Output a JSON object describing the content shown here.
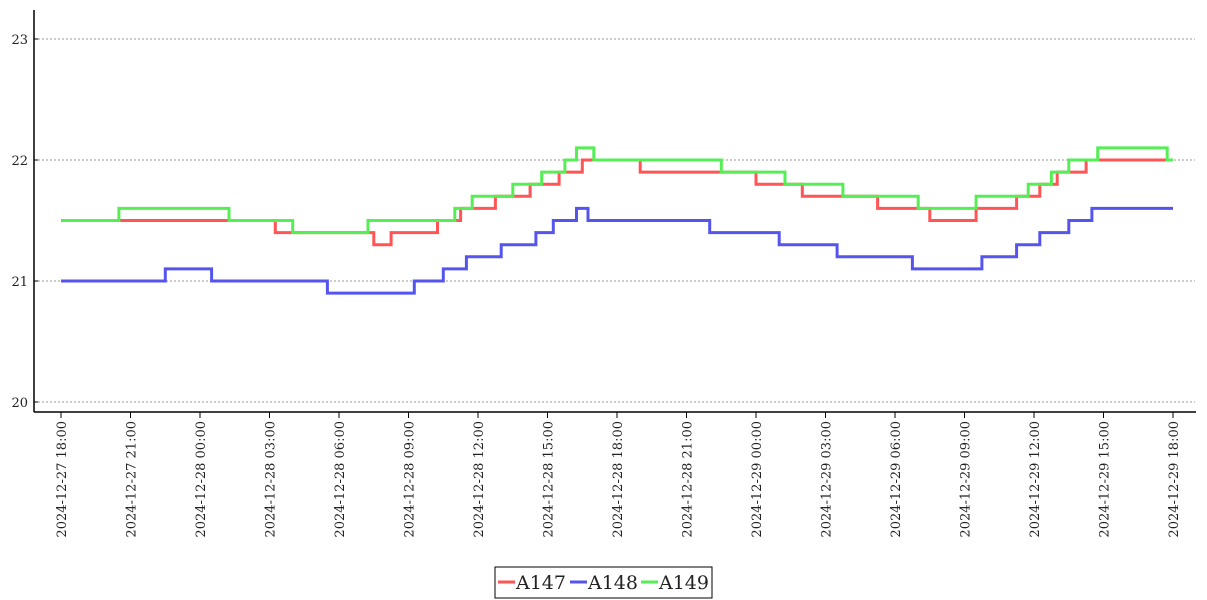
{
  "chart_data": {
    "type": "line",
    "title": "",
    "xlabel": "",
    "ylabel": "",
    "ylim": [
      19.92,
      23.2
    ],
    "y_ticks": [
      "20",
      "21",
      "22",
      "23"
    ],
    "y_tick_values": [
      20,
      21,
      22,
      23
    ],
    "grid": "horizontal dotted",
    "legend_placement": "bottom-center",
    "x_ticks": [
      "2024-12-27 18:00",
      "2024-12-27 21:00",
      "2024-12-28 00:00",
      "2024-12-28 03:00",
      "2024-12-28 06:00",
      "2024-12-28 09:00",
      "2024-12-28 12:00",
      "2024-12-28 15:00",
      "2024-12-28 18:00",
      "2024-12-28 21:00",
      "2024-12-29 00:00",
      "2024-12-29 03:00",
      "2024-12-29 06:00",
      "2024-12-29 09:00",
      "2024-12-29 12:00",
      "2024-12-29 15:00",
      "2024-12-29 18:00"
    ],
    "series": [
      {
        "name": "A147",
        "color": "#ff5555",
        "points": [
          [
            "2024-12-27 18:00",
            21.5
          ],
          [
            "2024-12-28 03:15",
            21.5
          ],
          [
            "2024-12-28 03:15",
            21.4
          ],
          [
            "2024-12-28 04:30",
            21.4
          ],
          [
            "2024-12-28 07:30",
            21.4
          ],
          [
            "2024-12-28 07:30",
            21.3
          ],
          [
            "2024-12-28 08:15",
            21.3
          ],
          [
            "2024-12-28 08:15",
            21.4
          ],
          [
            "2024-12-28 10:15",
            21.4
          ],
          [
            "2024-12-28 10:15",
            21.5
          ],
          [
            "2024-12-28 11:15",
            21.5
          ],
          [
            "2024-12-28 11:15",
            21.6
          ],
          [
            "2024-12-28 12:45",
            21.6
          ],
          [
            "2024-12-28 12:45",
            21.7
          ],
          [
            "2024-12-28 14:15",
            21.7
          ],
          [
            "2024-12-28 14:15",
            21.8
          ],
          [
            "2024-12-28 15:30",
            21.8
          ],
          [
            "2024-12-28 15:30",
            21.9
          ],
          [
            "2024-12-28 16:30",
            21.9
          ],
          [
            "2024-12-28 16:30",
            22.0
          ],
          [
            "2024-12-28 19:00",
            22.0
          ],
          [
            "2024-12-28 19:00",
            21.9
          ],
          [
            "2024-12-29 00:00",
            21.9
          ],
          [
            "2024-12-29 00:00",
            21.8
          ],
          [
            "2024-12-29 02:00",
            21.8
          ],
          [
            "2024-12-29 02:00",
            21.7
          ],
          [
            "2024-12-29 05:15",
            21.7
          ],
          [
            "2024-12-29 05:15",
            21.6
          ],
          [
            "2024-12-29 07:30",
            21.6
          ],
          [
            "2024-12-29 07:30",
            21.5
          ],
          [
            "2024-12-29 09:30",
            21.5
          ],
          [
            "2024-12-29 09:30",
            21.6
          ],
          [
            "2024-12-29 11:15",
            21.6
          ],
          [
            "2024-12-29 11:15",
            21.7
          ],
          [
            "2024-12-29 12:15",
            21.7
          ],
          [
            "2024-12-29 12:15",
            21.8
          ],
          [
            "2024-12-29 13:00",
            21.8
          ],
          [
            "2024-12-29 13:00",
            21.9
          ],
          [
            "2024-12-29 14:15",
            21.9
          ],
          [
            "2024-12-29 14:15",
            22.0
          ],
          [
            "2024-12-29 18:00",
            22.0
          ]
        ]
      },
      {
        "name": "A148",
        "color": "#5555ee",
        "points": [
          [
            "2024-12-27 18:00",
            21.0
          ],
          [
            "2024-12-27 22:30",
            21.0
          ],
          [
            "2024-12-27 22:30",
            21.1
          ],
          [
            "2024-12-28 00:30",
            21.1
          ],
          [
            "2024-12-28 00:30",
            21.0
          ],
          [
            "2024-12-28 05:30",
            21.0
          ],
          [
            "2024-12-28 05:30",
            20.9
          ],
          [
            "2024-12-28 09:15",
            20.9
          ],
          [
            "2024-12-28 09:15",
            21.0
          ],
          [
            "2024-12-28 10:30",
            21.0
          ],
          [
            "2024-12-28 10:30",
            21.1
          ],
          [
            "2024-12-28 11:30",
            21.1
          ],
          [
            "2024-12-28 11:30",
            21.2
          ],
          [
            "2024-12-28 13:00",
            21.2
          ],
          [
            "2024-12-28 13:00",
            21.3
          ],
          [
            "2024-12-28 14:30",
            21.3
          ],
          [
            "2024-12-28 14:30",
            21.4
          ],
          [
            "2024-12-28 15:15",
            21.4
          ],
          [
            "2024-12-28 15:15",
            21.5
          ],
          [
            "2024-12-28 16:15",
            21.5
          ],
          [
            "2024-12-28 16:15",
            21.6
          ],
          [
            "2024-12-28 16:45",
            21.6
          ],
          [
            "2024-12-28 16:45",
            21.5
          ],
          [
            "2024-12-28 22:00",
            21.5
          ],
          [
            "2024-12-28 22:00",
            21.4
          ],
          [
            "2024-12-29 01:00",
            21.4
          ],
          [
            "2024-12-29 01:00",
            21.3
          ],
          [
            "2024-12-29 03:30",
            21.3
          ],
          [
            "2024-12-29 03:30",
            21.2
          ],
          [
            "2024-12-29 06:45",
            21.2
          ],
          [
            "2024-12-29 06:45",
            21.1
          ],
          [
            "2024-12-29 09:45",
            21.1
          ],
          [
            "2024-12-29 09:45",
            21.2
          ],
          [
            "2024-12-29 11:15",
            21.2
          ],
          [
            "2024-12-29 11:15",
            21.3
          ],
          [
            "2024-12-29 12:15",
            21.3
          ],
          [
            "2024-12-29 12:15",
            21.4
          ],
          [
            "2024-12-29 13:30",
            21.4
          ],
          [
            "2024-12-29 13:30",
            21.5
          ],
          [
            "2024-12-29 14:30",
            21.5
          ],
          [
            "2024-12-29 14:30",
            21.6
          ],
          [
            "2024-12-29 18:00",
            21.6
          ]
        ]
      },
      {
        "name": "A149",
        "color": "#55ee55",
        "points": [
          [
            "2024-12-27 18:00",
            21.5
          ],
          [
            "2024-12-27 20:30",
            21.5
          ],
          [
            "2024-12-27 20:30",
            21.6
          ],
          [
            "2024-12-28 01:15",
            21.6
          ],
          [
            "2024-12-28 01:15",
            21.5
          ],
          [
            "2024-12-28 04:00",
            21.5
          ],
          [
            "2024-12-28 04:00",
            21.4
          ],
          [
            "2024-12-28 07:15",
            21.4
          ],
          [
            "2024-12-28 07:15",
            21.5
          ],
          [
            "2024-12-28 11:00",
            21.5
          ],
          [
            "2024-12-28 11:00",
            21.6
          ],
          [
            "2024-12-28 11:45",
            21.6
          ],
          [
            "2024-12-28 11:45",
            21.7
          ],
          [
            "2024-12-28 13:30",
            21.7
          ],
          [
            "2024-12-28 13:30",
            21.8
          ],
          [
            "2024-12-28 14:45",
            21.8
          ],
          [
            "2024-12-28 14:45",
            21.9
          ],
          [
            "2024-12-28 15:45",
            21.9
          ],
          [
            "2024-12-28 15:45",
            22.0
          ],
          [
            "2024-12-28 16:15",
            22.0
          ],
          [
            "2024-12-28 16:15",
            22.1
          ],
          [
            "2024-12-28 17:00",
            22.1
          ],
          [
            "2024-12-28 17:00",
            22.0
          ],
          [
            "2024-12-28 22:30",
            22.0
          ],
          [
            "2024-12-28 22:30",
            21.9
          ],
          [
            "2024-12-29 01:15",
            21.9
          ],
          [
            "2024-12-29 01:15",
            21.8
          ],
          [
            "2024-12-29 03:45",
            21.8
          ],
          [
            "2024-12-29 03:45",
            21.7
          ],
          [
            "2024-12-29 07:00",
            21.7
          ],
          [
            "2024-12-29 07:00",
            21.6
          ],
          [
            "2024-12-29 09:30",
            21.6
          ],
          [
            "2024-12-29 09:30",
            21.7
          ],
          [
            "2024-12-29 11:45",
            21.7
          ],
          [
            "2024-12-29 11:45",
            21.8
          ],
          [
            "2024-12-29 12:45",
            21.8
          ],
          [
            "2024-12-29 12:45",
            21.9
          ],
          [
            "2024-12-29 13:30",
            21.9
          ],
          [
            "2024-12-29 13:30",
            22.0
          ],
          [
            "2024-12-29 14:45",
            22.0
          ],
          [
            "2024-12-29 14:45",
            22.1
          ],
          [
            "2024-12-29 17:45",
            22.1
          ],
          [
            "2024-12-29 17:45",
            22.0
          ],
          [
            "2024-12-29 18:00",
            22.0
          ]
        ]
      }
    ]
  }
}
